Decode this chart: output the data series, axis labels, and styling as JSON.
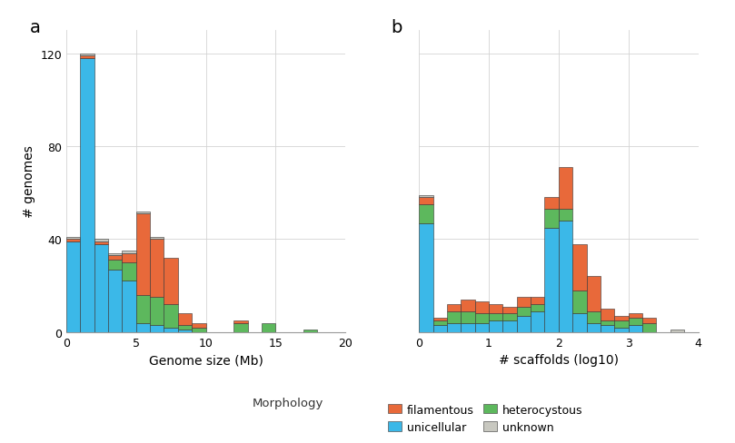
{
  "panel_a": {
    "xlabel": "Genome size (Mb)",
    "ylabel": "# genomes",
    "xlim": [
      0,
      20
    ],
    "ylim": [
      0,
      130
    ],
    "yticks": [
      0,
      40,
      80,
      120
    ],
    "xticks": [
      0,
      5,
      10,
      15,
      20
    ],
    "bin_edges": [
      0,
      1,
      2,
      3,
      4,
      5,
      6,
      7,
      8,
      9,
      10,
      11,
      12,
      13,
      14,
      15,
      16,
      17,
      18,
      19,
      20
    ],
    "unicellular": [
      39,
      118,
      38,
      27,
      22,
      4,
      3,
      2,
      1,
      0,
      0,
      0,
      0,
      0,
      0,
      0,
      0,
      0,
      0,
      0
    ],
    "filamentous": [
      1,
      1,
      1,
      2,
      4,
      35,
      25,
      20,
      5,
      2,
      0,
      0,
      1,
      0,
      0,
      0,
      0,
      0,
      0,
      0
    ],
    "heterocystous": [
      0,
      0,
      0,
      4,
      8,
      12,
      12,
      10,
      2,
      2,
      0,
      0,
      4,
      0,
      4,
      0,
      0,
      1,
      0,
      0
    ],
    "unknown": [
      1,
      1,
      1,
      1,
      1,
      1,
      1,
      0,
      0,
      0,
      0,
      0,
      0,
      0,
      0,
      0,
      0,
      0,
      0,
      0
    ]
  },
  "panel_b": {
    "xlabel": "# scaffolds (log10)",
    "xlim": [
      0,
      4
    ],
    "ylim": [
      0,
      130
    ],
    "yticks": [
      0,
      40,
      80,
      120
    ],
    "xticks": [
      0,
      1,
      2,
      3,
      4
    ],
    "bin_width": 0.2,
    "bin_edges": [
      0.0,
      0.2,
      0.4,
      0.6,
      0.8,
      1.0,
      1.2,
      1.4,
      1.6,
      1.8,
      2.0,
      2.2,
      2.4,
      2.6,
      2.8,
      3.0,
      3.2,
      3.4,
      3.6,
      3.8,
      4.0
    ],
    "unicellular": [
      47,
      3,
      4,
      4,
      4,
      5,
      5,
      7,
      9,
      45,
      48,
      8,
      4,
      3,
      2,
      3,
      0,
      0,
      0,
      0
    ],
    "filamentous": [
      3,
      1,
      3,
      5,
      5,
      4,
      3,
      4,
      3,
      5,
      18,
      20,
      15,
      5,
      2,
      2,
      2,
      0,
      0,
      0
    ],
    "heterocystous": [
      8,
      2,
      5,
      5,
      4,
      3,
      3,
      4,
      3,
      8,
      5,
      10,
      5,
      2,
      3,
      3,
      4,
      0,
      0,
      0
    ],
    "unknown": [
      1,
      0,
      0,
      0,
      0,
      0,
      0,
      0,
      0,
      0,
      0,
      0,
      0,
      0,
      0,
      0,
      0,
      0,
      1,
      0
    ]
  },
  "colors": {
    "unicellular": "#3BB8E8",
    "filamentous": "#E8693A",
    "heterocystous": "#5DB85D",
    "unknown": "#C8C8C0"
  },
  "panel_a_label": "a",
  "panel_b_label": "b",
  "morphology_label": "Morphology",
  "background_color": "#FFFFFF",
  "grid_color": "#D3D3D3"
}
